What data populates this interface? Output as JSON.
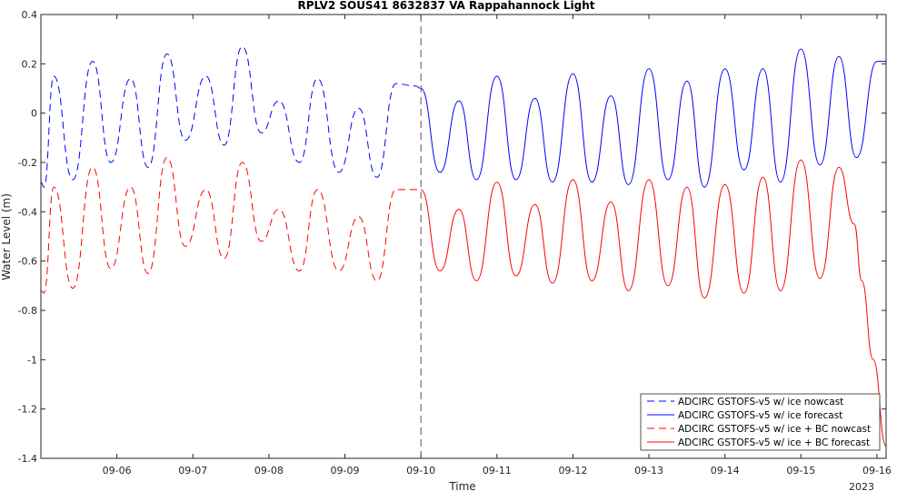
{
  "chart_data": {
    "type": "line",
    "title": "RPLV2 SOUS41 8632837 VA Rappahannock Light",
    "xlabel": "Time",
    "ylabel": "Water Level (m)",
    "x_year_label": "2023",
    "x_tick_labels": [
      "09-06",
      "09-07",
      "09-08",
      "09-09",
      "09-10",
      "09-11",
      "09-12",
      "09-13",
      "09-14",
      "09-15",
      "09-16"
    ],
    "x_range_days": [
      5.0,
      16.12
    ],
    "nowcast_forecast_boundary_day": 10,
    "ylim": [
      -1.4,
      0.4
    ],
    "yticks": [
      0.4,
      0.2,
      0,
      -0.2,
      -0.4,
      -0.6,
      -0.8,
      -1,
      -1.2,
      -1.4
    ],
    "ytick_labels": [
      "0.4",
      "0.2",
      "0",
      "-0.2",
      "-0.4",
      "-0.6",
      "-0.8",
      "-1",
      "-1.2",
      "-1.4"
    ],
    "grid": false,
    "legend_position": "bottom-right",
    "series": [
      {
        "name": "ADCIRC GSTOFS-v5 w/ ice nowcast",
        "color": "#0000ff",
        "style": "dashed",
        "x": [
          5.0,
          5.04,
          5.17,
          5.42,
          5.68,
          5.92,
          6.18,
          6.41,
          6.66,
          6.9,
          7.17,
          7.41,
          7.65,
          7.9,
          8.13,
          8.4,
          8.64,
          8.92,
          9.18,
          9.42,
          9.67,
          9.93,
          10.0
        ],
        "y": [
          -0.28,
          -0.3,
          0.15,
          -0.27,
          0.21,
          -0.2,
          0.14,
          -0.22,
          0.24,
          -0.11,
          0.15,
          -0.13,
          0.27,
          -0.08,
          0.05,
          -0.2,
          0.14,
          -0.24,
          0.02,
          -0.26,
          0.12,
          0.11,
          0.1
        ]
      },
      {
        "name": "ADCIRC GSTOFS-v5 w/ ice forecast",
        "color": "#0000ff",
        "style": "solid",
        "x": [
          10.0,
          10.25,
          10.5,
          10.73,
          11.0,
          11.25,
          11.5,
          11.73,
          12.0,
          12.25,
          12.5,
          12.73,
          13.0,
          13.25,
          13.5,
          13.73,
          14.0,
          14.25,
          14.5,
          14.73,
          15.0,
          15.25,
          15.5,
          15.73,
          16.0,
          16.12
        ],
        "y": [
          0.1,
          -0.24,
          0.05,
          -0.27,
          0.15,
          -0.27,
          0.06,
          -0.28,
          0.16,
          -0.28,
          0.07,
          -0.29,
          0.18,
          -0.27,
          0.13,
          -0.3,
          0.18,
          -0.23,
          0.18,
          -0.28,
          0.26,
          -0.21,
          0.23,
          -0.18,
          0.21,
          0.21
        ]
      },
      {
        "name": "ADCIRC GSTOFS-v5 w/ ice + BC nowcast",
        "color": "#ff0000",
        "style": "dashed",
        "x": [
          5.0,
          5.04,
          5.17,
          5.42,
          5.68,
          5.92,
          6.18,
          6.41,
          6.66,
          6.9,
          7.17,
          7.41,
          7.65,
          7.9,
          8.13,
          8.4,
          8.64,
          8.92,
          9.18,
          9.42,
          9.67,
          9.93,
          10.0
        ],
        "y": [
          -0.72,
          -0.73,
          -0.3,
          -0.71,
          -0.22,
          -0.63,
          -0.3,
          -0.65,
          -0.18,
          -0.54,
          -0.31,
          -0.59,
          -0.2,
          -0.52,
          -0.39,
          -0.64,
          -0.31,
          -0.64,
          -0.42,
          -0.68,
          -0.31,
          -0.31,
          -0.31
        ]
      },
      {
        "name": "ADCIRC GSTOFS-v5 w/ ice + BC forecast",
        "color": "#ff0000",
        "style": "solid",
        "x": [
          10.0,
          10.25,
          10.5,
          10.73,
          11.0,
          11.25,
          11.5,
          11.73,
          12.0,
          12.25,
          12.5,
          12.73,
          13.0,
          13.25,
          13.5,
          13.73,
          14.0,
          14.25,
          14.5,
          14.73,
          15.0,
          15.25,
          15.5,
          15.7,
          15.8,
          15.95,
          16.12
        ],
        "y": [
          -0.31,
          -0.64,
          -0.39,
          -0.68,
          -0.28,
          -0.66,
          -0.37,
          -0.69,
          -0.27,
          -0.68,
          -0.36,
          -0.72,
          -0.27,
          -0.7,
          -0.3,
          -0.75,
          -0.29,
          -0.73,
          -0.26,
          -0.72,
          -0.19,
          -0.67,
          -0.22,
          -0.45,
          -0.68,
          -1.0,
          -1.35
        ]
      }
    ]
  }
}
